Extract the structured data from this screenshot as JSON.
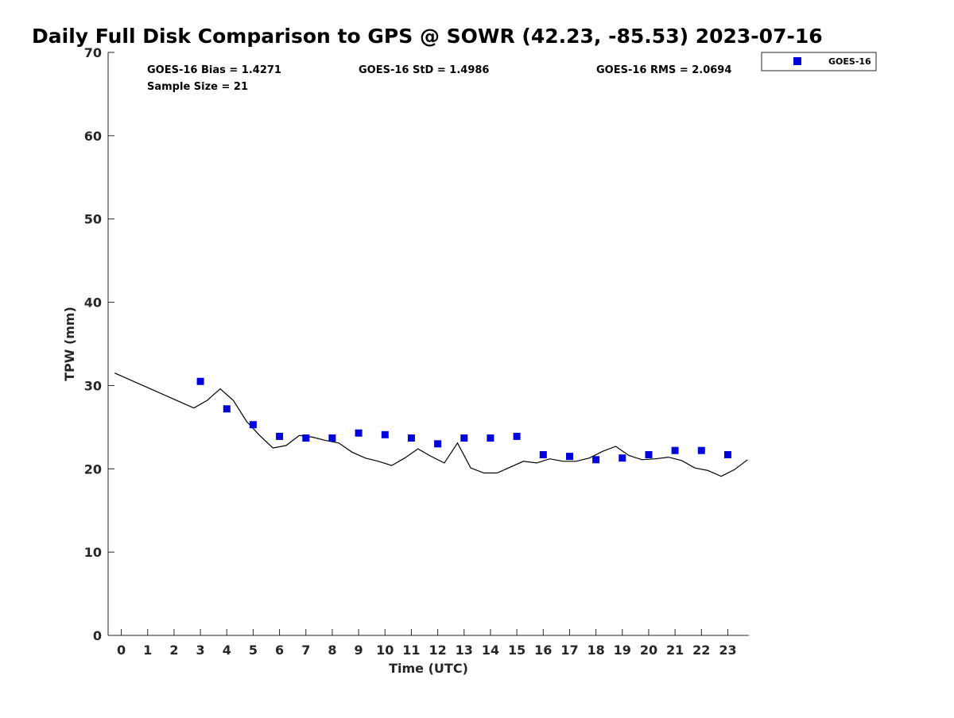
{
  "chart_data": {
    "type": "scatter",
    "title": "Daily Full Disk Comparison to GPS @ SOWR (42.23, -85.53) 2023-07-16",
    "xlabel": "Time (UTC)",
    "ylabel": "TPW (mm)",
    "xlim": [
      -0.5,
      23.8
    ],
    "ylim": [
      0,
      70
    ],
    "xticks": [
      "0",
      "1",
      "2",
      "3",
      "4",
      "5",
      "6",
      "7",
      "8",
      "9",
      "10",
      "11",
      "12",
      "13",
      "14",
      "15",
      "16",
      "17",
      "18",
      "19",
      "20",
      "21",
      "22",
      "23"
    ],
    "yticks": [
      "0",
      "10",
      "20",
      "30",
      "40",
      "50",
      "60",
      "70"
    ],
    "grid": false,
    "legend_position": "top-right, outside plot",
    "stats": {
      "bias": "GOES-16 Bias = 1.4271",
      "std": "GOES-16 StD = 1.4986",
      "rms": "GOES-16 RMS = 2.0694",
      "sample_size": "Sample Size = 21"
    },
    "series": [
      {
        "name": "GOES-16",
        "kind": "scatter",
        "color": "#0000dd",
        "marker": "square",
        "x": [
          3,
          4,
          5,
          6,
          7,
          8,
          9,
          10,
          11,
          12,
          13,
          14,
          15,
          16,
          17,
          18,
          19,
          20,
          21,
          22,
          23
        ],
        "y": [
          30.5,
          27.2,
          25.3,
          23.9,
          23.7,
          23.7,
          24.3,
          24.1,
          23.7,
          23.0,
          23.7,
          23.7,
          23.9,
          21.7,
          21.5,
          21.1,
          21.3,
          21.7,
          22.2,
          22.2,
          21.7
        ]
      },
      {
        "kind": "line",
        "color": "#000000",
        "x": [
          -0.25,
          2.75,
          3.25,
          3.75,
          4.25,
          4.75,
          5.25,
          5.75,
          6.25,
          6.75,
          7.25,
          7.75,
          8.25,
          8.75,
          9.25,
          9.75,
          10.25,
          10.75,
          11.25,
          11.75,
          12.25,
          12.75,
          13.25,
          13.75,
          14.25,
          14.75,
          15.25,
          15.75,
          16.25,
          16.75,
          17.25,
          17.75,
          18.25,
          18.75,
          19.25,
          19.75,
          20.25,
          20.75,
          21.25,
          21.75,
          22.25,
          22.75,
          23.25,
          23.75
        ],
        "y": [
          31.5,
          27.3,
          28.2,
          29.6,
          28.2,
          25.7,
          24.0,
          22.5,
          22.8,
          24.0,
          23.8,
          23.4,
          23.1,
          22.0,
          21.3,
          20.9,
          20.4,
          21.3,
          22.4,
          21.5,
          20.7,
          23.1,
          20.1,
          19.5,
          19.5,
          20.2,
          20.9,
          20.7,
          21.2,
          20.9,
          20.9,
          21.3,
          22.1,
          22.7,
          21.6,
          21.1,
          21.2,
          21.4,
          21.0,
          20.1,
          19.8,
          19.1,
          19.9,
          21.1
        ]
      }
    ]
  }
}
